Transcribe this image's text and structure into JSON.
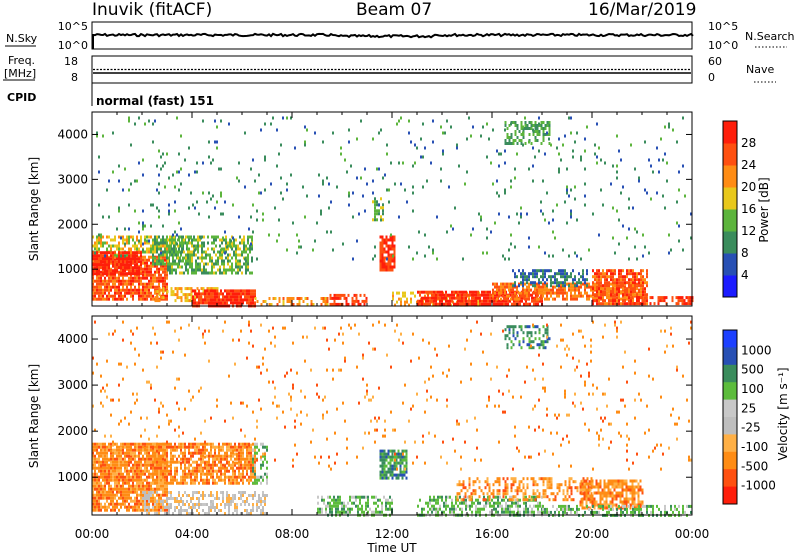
{
  "header": {
    "station": "Inuvik (fitACF)",
    "beam": "Beam 07",
    "date": "16/Mar/2019"
  },
  "strips": {
    "nsky": {
      "label": "N.Sky",
      "left_ticks": [
        "10^5",
        "10^0"
      ],
      "right_label": "N.Search",
      "right_ticks": [
        "10^5",
        "10^0"
      ]
    },
    "freq": {
      "label_top": "Freq.",
      "label_unit": "[MHz]",
      "left_ticks": [
        "18",
        "8"
      ],
      "right_label": "Nave",
      "right_ticks": [
        "60",
        "0"
      ]
    },
    "cpid": {
      "label": "CPID",
      "text": "normal (fast) 151"
    }
  },
  "xaxis": {
    "label": "Time UT",
    "ticks": [
      "00:00",
      "04:00",
      "08:00",
      "12:00",
      "16:00",
      "20:00",
      "00:00"
    ]
  },
  "colors": {
    "power": [
      "#1c1cff",
      "#2850b4",
      "#3a8c5c",
      "#5cb43c",
      "#e8c81c",
      "#ff8c14",
      "#ff5010",
      "#ff1e0a"
    ],
    "velocity": [
      "#ff1e0a",
      "#ff5010",
      "#ff8c14",
      "#ffb046",
      "#bebebe",
      "#c8c8c8",
      "#5cbc3c",
      "#3a8c5c",
      "#2850b4",
      "#1c40ff"
    ]
  },
  "chart_data": [
    {
      "type": "heatmap",
      "title": "Power",
      "xlabel": "Time UT",
      "ylabel": "Slant Range [km]",
      "colorbar_label": "Power [dB]",
      "colorbar_ticks": [
        "4",
        "8",
        "12",
        "16",
        "20",
        "24",
        "28"
      ],
      "y_ticks": [
        "1000",
        "2000",
        "3000",
        "4000"
      ],
      "xlim": [
        0,
        24
      ],
      "ylim": [
        180,
        4500
      ],
      "clim": [
        0,
        32
      ],
      "regions": [
        {
          "t0": 0.0,
          "t1": 3.0,
          "r0": 300,
          "r1": 1300,
          "v": 26,
          "d": 0.8
        },
        {
          "t0": 0.0,
          "t1": 3.0,
          "r0": 1300,
          "r1": 1750,
          "v": 18,
          "d": 0.55
        },
        {
          "t0": 0.0,
          "t1": 2.0,
          "r0": 900,
          "r1": 1400,
          "v": 30,
          "d": 0.85
        },
        {
          "t0": 2.4,
          "t1": 4.0,
          "r0": 1100,
          "r1": 1750,
          "v": 12,
          "d": 0.6
        },
        {
          "t0": 3.0,
          "t1": 6.4,
          "r0": 900,
          "r1": 1750,
          "v": 14,
          "d": 0.6
        },
        {
          "t0": 2.5,
          "t1": 5.0,
          "r0": 300,
          "r1": 600,
          "v": 20,
          "d": 0.5
        },
        {
          "t0": 4.0,
          "t1": 6.5,
          "r0": 200,
          "r1": 550,
          "v": 29,
          "d": 0.85
        },
        {
          "t0": 6.5,
          "t1": 9.5,
          "r0": 200,
          "r1": 380,
          "v": 22,
          "d": 0.45
        },
        {
          "t0": 9.5,
          "t1": 11.0,
          "r0": 200,
          "r1": 450,
          "v": 28,
          "d": 0.6
        },
        {
          "t0": 11.5,
          "t1": 12.1,
          "r0": 1000,
          "r1": 1750,
          "v": 28,
          "d": 0.85
        },
        {
          "t0": 11.2,
          "t1": 11.6,
          "r0": 2100,
          "r1": 2600,
          "v": 14,
          "d": 0.6
        },
        {
          "t0": 12.0,
          "t1": 15.5,
          "r0": 200,
          "r1": 500,
          "v": 20,
          "d": 0.4
        },
        {
          "t0": 13.0,
          "t1": 18.0,
          "r0": 200,
          "r1": 520,
          "v": 29,
          "d": 0.85
        },
        {
          "t0": 16.0,
          "t1": 22.0,
          "r0": 300,
          "r1": 700,
          "v": 24,
          "d": 0.7
        },
        {
          "t0": 16.8,
          "t1": 19.8,
          "r0": 600,
          "r1": 1000,
          "v": 8,
          "d": 0.55
        },
        {
          "t0": 20.0,
          "t1": 22.2,
          "r0": 250,
          "r1": 1000,
          "v": 26,
          "d": 0.8
        },
        {
          "t0": 21.5,
          "t1": 24.0,
          "r0": 200,
          "r1": 400,
          "v": 28,
          "d": 0.6
        },
        {
          "t0": 16.5,
          "t1": 18.3,
          "r0": 3800,
          "r1": 4300,
          "v": 12,
          "d": 0.45
        },
        {
          "t0": 0.0,
          "t1": 24.0,
          "r0": 1200,
          "r1": 4400,
          "v": 10,
          "d": 0.04
        }
      ]
    },
    {
      "type": "heatmap",
      "title": "Velocity",
      "xlabel": "Time UT",
      "ylabel": "Slant Range [km]",
      "colorbar_label": "Velocity [m s⁻¹]",
      "colorbar_ticks": [
        "1000",
        "500",
        "100",
        "25",
        "-25",
        "-100",
        "-500",
        "-1000"
      ],
      "y_ticks": [
        "1000",
        "2000",
        "3000",
        "4000"
      ],
      "xlim": [
        0,
        24
      ],
      "ylim": [
        180,
        4500
      ],
      "regions": [
        {
          "t0": 0.0,
          "t1": 3.0,
          "r0": 300,
          "r1": 1750,
          "c": 2,
          "d": 0.85
        },
        {
          "t0": 2.4,
          "t1": 6.5,
          "r0": 900,
          "r1": 1750,
          "c": 2,
          "d": 0.75
        },
        {
          "t0": 6.4,
          "t1": 7.0,
          "r0": 900,
          "r1": 1750,
          "c": 6,
          "d": 0.5
        },
        {
          "t0": 2.0,
          "t1": 7.0,
          "r0": 200,
          "r1": 700,
          "c": 4,
          "d": 0.5
        },
        {
          "t0": 9.0,
          "t1": 12.0,
          "r0": 200,
          "r1": 600,
          "c": 6,
          "d": 0.55
        },
        {
          "t0": 11.5,
          "t1": 12.6,
          "r0": 950,
          "r1": 1600,
          "c": 7,
          "d": 0.85
        },
        {
          "t0": 13.0,
          "t1": 18.0,
          "r0": 200,
          "r1": 600,
          "c": 6,
          "d": 0.55
        },
        {
          "t0": 14.5,
          "t1": 20.0,
          "r0": 500,
          "r1": 1000,
          "c": 2,
          "d": 0.45
        },
        {
          "t0": 19.5,
          "t1": 22.0,
          "r0": 300,
          "r1": 950,
          "c": 2,
          "d": 0.75
        },
        {
          "t0": 18.0,
          "t1": 24.0,
          "r0": 200,
          "r1": 400,
          "c": 6,
          "d": 0.5
        },
        {
          "t0": 16.5,
          "t1": 18.3,
          "r0": 3800,
          "r1": 4300,
          "c": 7,
          "d": 0.45
        },
        {
          "t0": 0.0,
          "t1": 24.0,
          "r0": 1200,
          "r1": 4400,
          "c": 2,
          "d": 0.04
        }
      ]
    }
  ]
}
